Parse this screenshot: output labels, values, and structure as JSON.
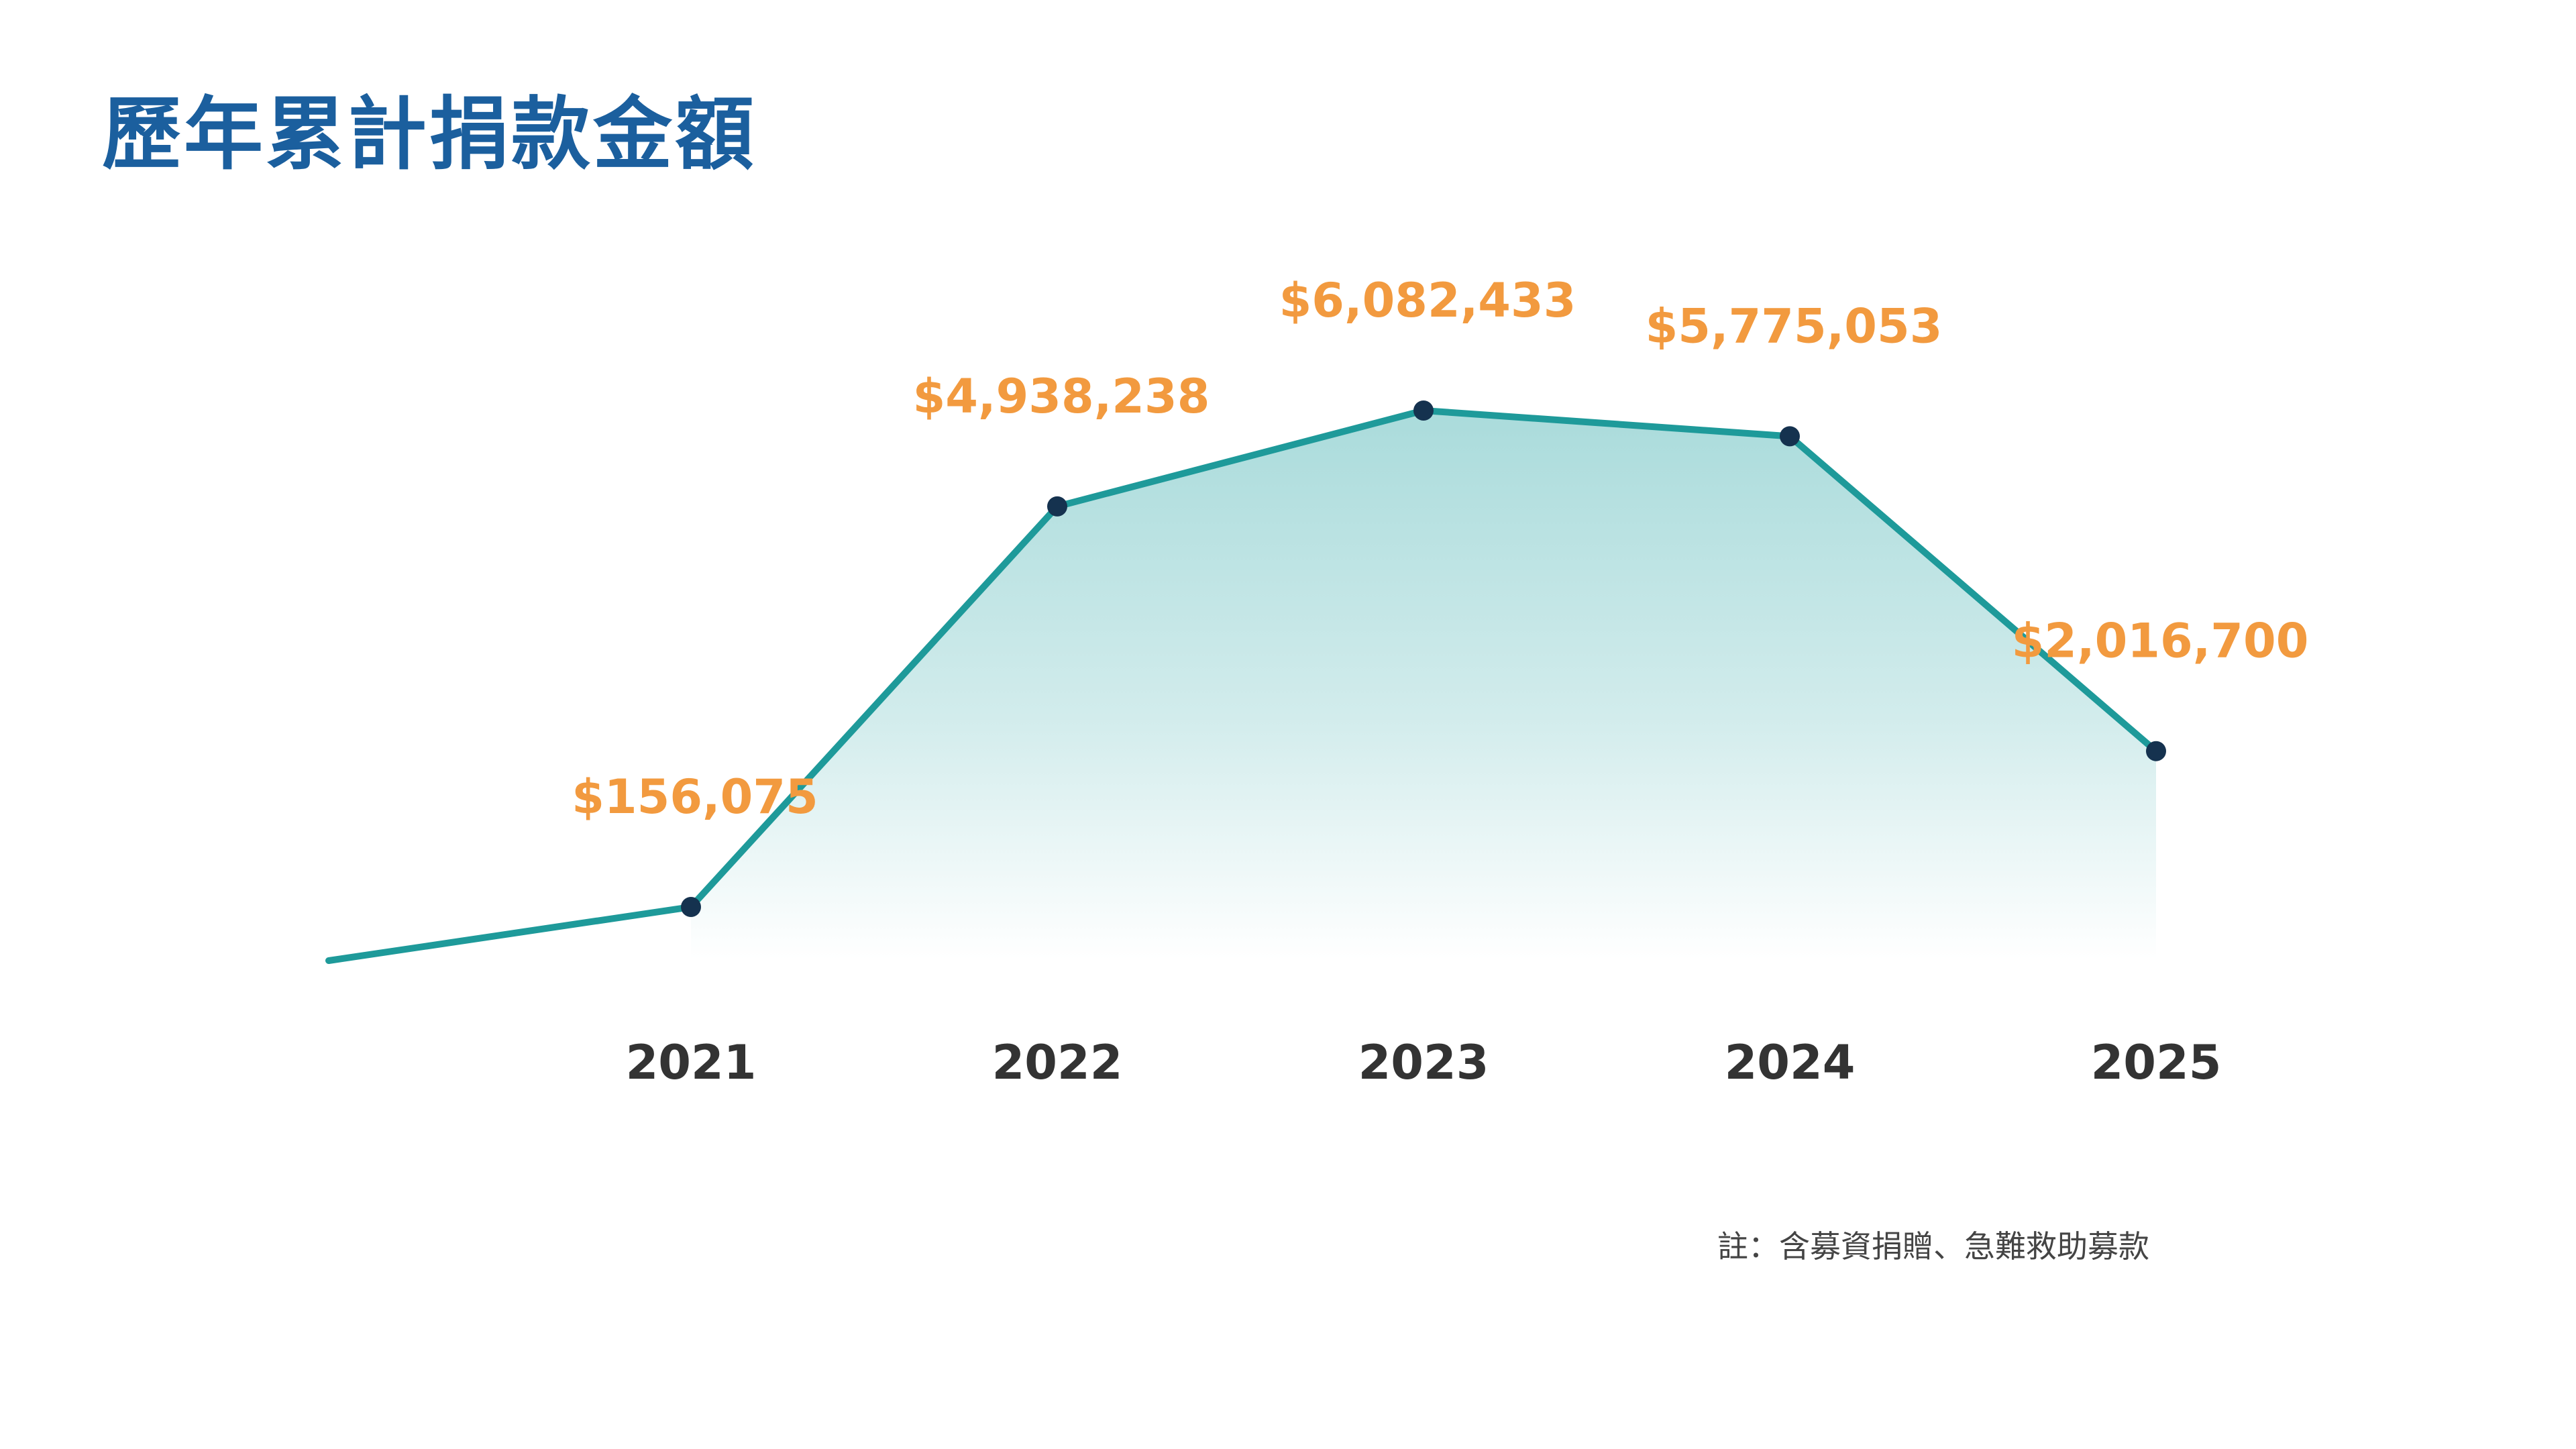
{
  "title": "歷年累計捐款金額",
  "footnote": "註：含募資捐贈、急難救助募款",
  "colors": {
    "title": "#1b5f9e",
    "line": "#1e9a9a",
    "area_top": "#7cc8c8",
    "point": "#15324f",
    "value_label": "#f29a3f",
    "year_label": "#333333"
  },
  "chart_data": {
    "type": "area",
    "categories": [
      "2021",
      "2022",
      "2023",
      "2024",
      "2025"
    ],
    "values": [
      156075,
      4938238,
      6082433,
      5775053,
      2016700
    ],
    "value_labels": [
      "$156,075",
      "$4,938,238",
      "$6,082,433",
      "$5,775,053",
      "$2,016,700"
    ],
    "title": "歷年累計捐款金額",
    "xlabel": "",
    "ylabel": "",
    "grid": false,
    "legend": "none"
  }
}
